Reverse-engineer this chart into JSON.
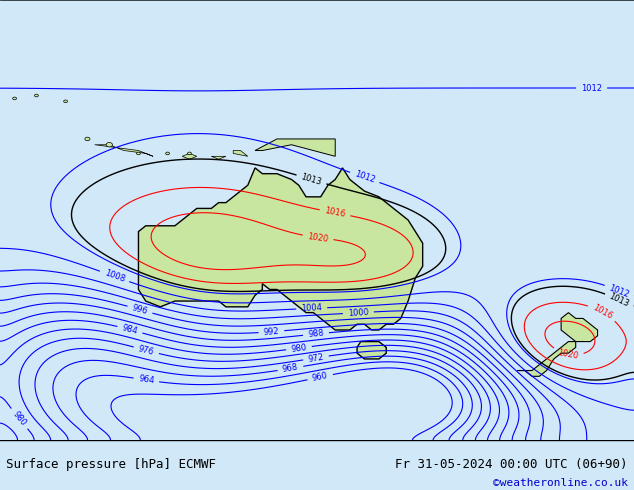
{
  "title_left": "Surface pressure [hPa] ECMWF",
  "title_right": "Fr 31-05-2024 00:00 UTC (06+90)",
  "credit": "©weatheronline.co.uk",
  "bg_color": "#d0e8f8",
  "land_color": "#c8e6a0",
  "border_color": "#000000",
  "title_color": "#000000",
  "credit_color": "#0000cc",
  "fig_width": 6.34,
  "fig_height": 4.9,
  "dpi": 100,
  "footer_bg": "#ffffff",
  "contour_blue": "#0000ff",
  "contour_red": "#ff0000",
  "contour_black": "#000000",
  "label_fontsize": 9,
  "footer_fontsize": 9,
  "credit_fontsize": 8
}
